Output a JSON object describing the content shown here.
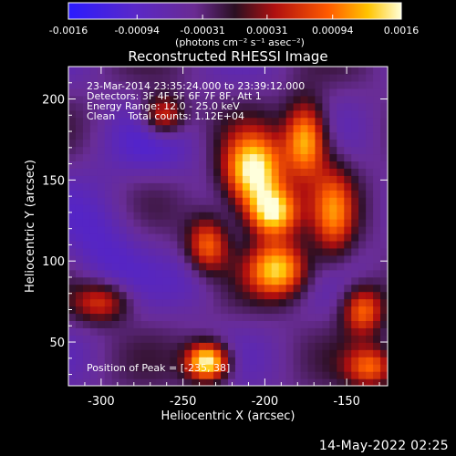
{
  "chart_data": {
    "type": "heatmap",
    "title": "Reconstructed RHESSI Image",
    "xlabel": "Heliocentric X (arcsec)",
    "ylabel": "Heliocentric Y (arcsec)",
    "xlim": [
      -320,
      -125
    ],
    "ylim": [
      23,
      220
    ],
    "xticks": [
      -300,
      -250,
      -200,
      -150
    ],
    "yticks": [
      50,
      100,
      150,
      200
    ],
    "colorbar": {
      "min": -0.0016,
      "max": 0.0016,
      "ticks": [
        -0.0016,
        -0.00094,
        -0.00031,
        0.00031,
        0.00094,
        0.0016
      ],
      "tick_labels": [
        "-0.0016",
        "-0.00094",
        "-0.00031",
        "0.00031",
        "0.00094",
        "0.0016"
      ],
      "units": "(photons cm⁻² s⁻¹ asec⁻²)",
      "colormap": "rainbow-to-hot"
    },
    "annotations": [
      "23-Mar-2014 23:35:24.000 to 23:39:12.000",
      "Detectors: 3F 4F 5F 6F 7F 8F, Att 1",
      "Energy Range: 12.0 - 25.0 keV",
      "Clean    Total counts: 1.12E+04"
    ],
    "peak_label": "Position of Peak = [-235, 38]",
    "sources": [
      {
        "x": -207,
        "y": 155,
        "sx": 14,
        "sy": 18,
        "amp": 1.0
      },
      {
        "x": -195,
        "y": 130,
        "sx": 12,
        "sy": 12,
        "amp": 0.85
      },
      {
        "x": -192,
        "y": 95,
        "sx": 14,
        "sy": 13,
        "amp": 0.8
      },
      {
        "x": -175,
        "y": 175,
        "sx": 10,
        "sy": 18,
        "amp": 0.8
      },
      {
        "x": -235,
        "y": 38,
        "sx": 10,
        "sy": 9,
        "amp": 1.0
      },
      {
        "x": -235,
        "y": 110,
        "sx": 10,
        "sy": 14,
        "amp": 0.6
      },
      {
        "x": -158,
        "y": 130,
        "sx": 10,
        "sy": 22,
        "amp": 0.55
      },
      {
        "x": -140,
        "y": 70,
        "sx": 10,
        "sy": 12,
        "amp": 0.6
      },
      {
        "x": -300,
        "y": 75,
        "sx": 14,
        "sy": 10,
        "amp": 0.5
      },
      {
        "x": -262,
        "y": 190,
        "sx": 10,
        "sy": 10,
        "amp": 0.55
      },
      {
        "x": -135,
        "y": 35,
        "sx": 12,
        "sy": 10,
        "amp": 0.55
      }
    ]
  },
  "footer": {
    "timestamp": "14-May-2022 02:25"
  }
}
